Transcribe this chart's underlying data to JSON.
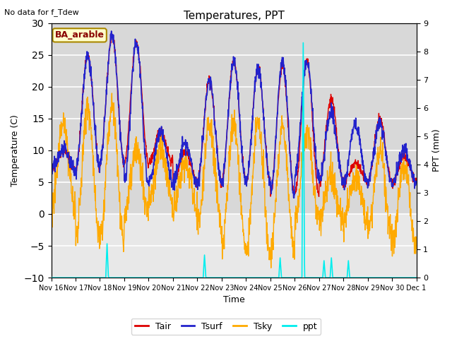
{
  "title": "Temperatures, PPT",
  "note": "No data for f_Tdew",
  "station_label": "BA_arable",
  "ylabel_left": "Temperature (C)",
  "ylabel_right": "PPT (mm)",
  "xlabel": "Time",
  "ylim_left": [
    -10,
    30
  ],
  "ylim_right": [
    0.0,
    9.0
  ],
  "yticks_left": [
    -10,
    -5,
    0,
    5,
    10,
    15,
    20,
    25,
    30
  ],
  "yticks_right": [
    0.0,
    1.0,
    2.0,
    3.0,
    4.0,
    5.0,
    6.0,
    7.0,
    8.0,
    9.0
  ],
  "xticklabels": [
    "Nov 16",
    "Nov 17",
    "Nov 18",
    "Nov 19",
    "Nov 20",
    "Nov 21",
    "Nov 22",
    "Nov 23",
    "Nov 24",
    "Nov 25",
    "Nov 26",
    "Nov 27",
    "Nov 28",
    "Nov 29",
    "Nov 30",
    "Dec 1"
  ],
  "colors": {
    "Tair": "#dd0000",
    "Tsurf": "#2222cc",
    "Tsky": "#ffaa00",
    "ppt": "#00eeee",
    "background_top": "#d8d8d8",
    "background_bot": "#e8e8e8",
    "grid": "#ffffff",
    "station_box_bg": "#ffffcc",
    "station_box_edge": "#aa8800"
  },
  "legend_labels": [
    "Tair",
    "Tsurf",
    "Tsky",
    "ppt"
  ],
  "n_points": 1440,
  "tair_peaks": [
    10,
    25,
    28,
    27,
    13,
    10,
    21,
    24,
    23,
    23,
    24,
    18,
    8,
    15,
    9,
    9
  ],
  "tair_troughs": [
    7,
    7,
    8,
    8,
    8,
    5,
    5,
    5,
    5,
    3,
    3,
    5,
    5,
    5,
    5,
    5
  ],
  "tsurf_peaks": [
    10,
    25,
    28,
    27,
    13,
    11,
    21,
    24,
    23,
    24,
    24,
    16,
    14,
    14,
    10,
    16
  ],
  "tsurf_troughs": [
    7,
    7,
    8,
    5,
    5,
    5,
    5,
    5,
    5,
    3,
    6,
    5,
    5,
    5,
    5,
    5
  ],
  "tsky_peaks": [
    14,
    17,
    17,
    10,
    10,
    8,
    14,
    14,
    14,
    14,
    13,
    6,
    6,
    10,
    8,
    10
  ],
  "tsky_troughs": [
    1,
    -4,
    -4,
    0,
    2,
    1,
    -2,
    -5,
    -6,
    -6,
    -1,
    -1,
    -1,
    -3,
    -5,
    -5
  ],
  "ppt_events": [
    {
      "day": 2.3,
      "peak": 1.2
    },
    {
      "day": 6.3,
      "peak": 0.8
    },
    {
      "day": 9.4,
      "peak": 0.7
    },
    {
      "day": 10.35,
      "peak": 8.3
    },
    {
      "day": 11.2,
      "peak": 0.6
    },
    {
      "day": 11.5,
      "peak": 0.7
    },
    {
      "day": 12.2,
      "peak": 0.6
    }
  ]
}
